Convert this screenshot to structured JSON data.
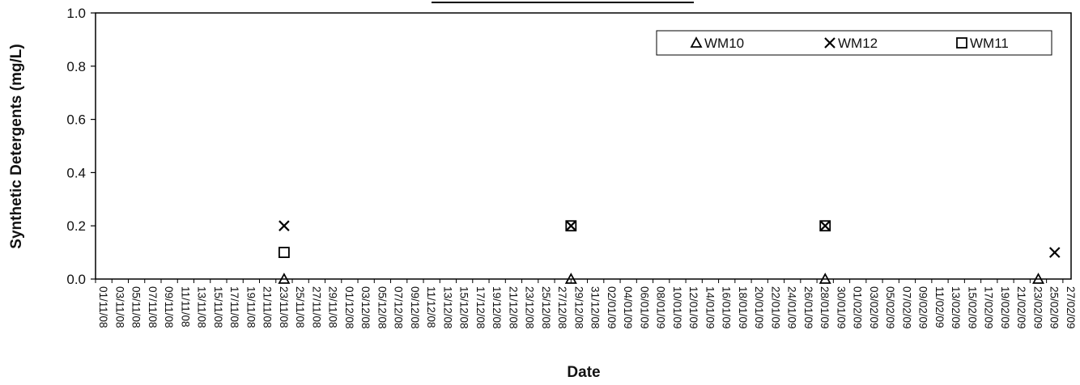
{
  "chart_data": {
    "type": "scatter",
    "title": "",
    "xlabel": "Date",
    "ylabel": "Synthetic Detergents (mg/L)",
    "ylim": [
      0,
      1.0
    ],
    "yticks": [
      "0.0",
      "0.2",
      "0.4",
      "0.6",
      "0.8",
      "1.0"
    ],
    "xlim": [
      "01/11/08",
      "28/02/09"
    ],
    "xticks": [
      "01/11/08",
      "03/11/08",
      "05/11/08",
      "07/11/08",
      "09/11/08",
      "11/11/08",
      "13/11/08",
      "15/11/08",
      "17/11/08",
      "19/11/08",
      "21/11/08",
      "23/11/08",
      "25/11/08",
      "27/11/08",
      "29/11/08",
      "01/12/08",
      "03/12/08",
      "05/12/08",
      "07/12/08",
      "09/12/08",
      "11/12/08",
      "13/12/08",
      "15/12/08",
      "17/12/08",
      "19/12/08",
      "21/12/08",
      "23/12/08",
      "25/12/08",
      "27/12/08",
      "29/12/08",
      "31/12/08",
      "02/01/09",
      "04/01/09",
      "06/01/09",
      "08/01/09",
      "10/01/09",
      "12/01/09",
      "14/01/09",
      "16/01/09",
      "18/01/09",
      "20/01/09",
      "22/01/09",
      "24/01/09",
      "26/01/09",
      "28/01/09",
      "30/01/09",
      "01/02/09",
      "03/02/09",
      "05/02/09",
      "07/02/09",
      "09/02/09",
      "11/02/09",
      "13/02/09",
      "15/02/09",
      "17/02/09",
      "19/02/09",
      "21/02/09",
      "23/02/09",
      "25/02/09",
      "27/02/09"
    ],
    "grid": false,
    "legend_position": "top-right",
    "series": [
      {
        "name": "WM10",
        "marker": "triangle",
        "color": "#000000",
        "points": [
          {
            "x": "24/11/08",
            "y": 0.0
          },
          {
            "x": "29/12/08",
            "y": 0.0
          },
          {
            "x": "29/01/09",
            "y": 0.0
          },
          {
            "x": "24/02/09",
            "y": 0.0
          }
        ]
      },
      {
        "name": "WM12",
        "marker": "x",
        "color": "#000000",
        "points": [
          {
            "x": "24/11/08",
            "y": 0.2
          },
          {
            "x": "29/12/08",
            "y": 0.2
          },
          {
            "x": "29/01/09",
            "y": 0.2
          },
          {
            "x": "26/02/09",
            "y": 0.1
          }
        ]
      },
      {
        "name": "WM11",
        "marker": "square",
        "color": "#000000",
        "points": [
          {
            "x": "24/11/08",
            "y": 0.1
          },
          {
            "x": "29/12/08",
            "y": 0.2
          },
          {
            "x": "29/01/09",
            "y": 0.2
          }
        ]
      }
    ]
  }
}
